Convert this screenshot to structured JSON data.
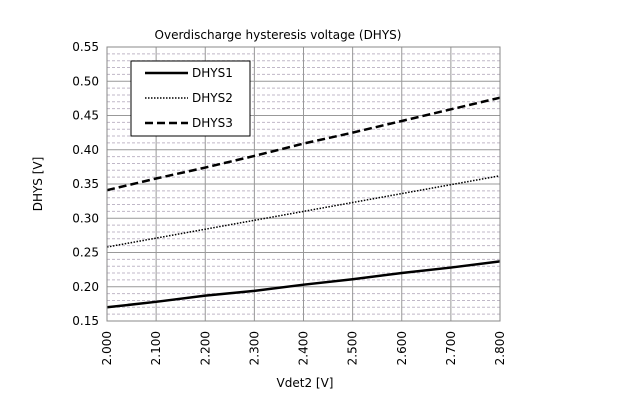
{
  "chart_data": {
    "type": "line",
    "title": "Overdischarge hysteresis voltage (DHYS)",
    "xlabel": "Vdet2 [V]",
    "ylabel": "DHYS [V]",
    "xlim": [
      2.0,
      2.8
    ],
    "ylim": [
      0.15,
      0.55
    ],
    "x_ticks": [
      "2.000",
      "2.100",
      "2.200",
      "2.300",
      "2.400",
      "2.500",
      "2.600",
      "2.700",
      "2.800"
    ],
    "y_ticks": [
      "0.15",
      "0.20",
      "0.25",
      "0.30",
      "0.35",
      "0.40",
      "0.45",
      "0.50",
      "0.55"
    ],
    "grid": true,
    "legend_position": "top-left",
    "x": [
      2.0,
      2.1,
      2.2,
      2.3,
      2.4,
      2.5,
      2.6,
      2.7,
      2.8
    ],
    "series": [
      {
        "name": "DHYS1",
        "style": "solid",
        "values": [
          0.17,
          0.178,
          0.187,
          0.194,
          0.203,
          0.211,
          0.22,
          0.228,
          0.237
        ]
      },
      {
        "name": "DHYS2",
        "style": "dotted",
        "values": [
          0.258,
          0.271,
          0.284,
          0.297,
          0.31,
          0.323,
          0.336,
          0.349,
          0.362
        ]
      },
      {
        "name": "DHYS3",
        "style": "dashed",
        "values": [
          0.341,
          0.358,
          0.374,
          0.391,
          0.409,
          0.425,
          0.442,
          0.459,
          0.476
        ]
      }
    ],
    "colors": {
      "line": "#000000",
      "major_grid": "#999999",
      "minor_grid": "#c0b8c8"
    }
  }
}
